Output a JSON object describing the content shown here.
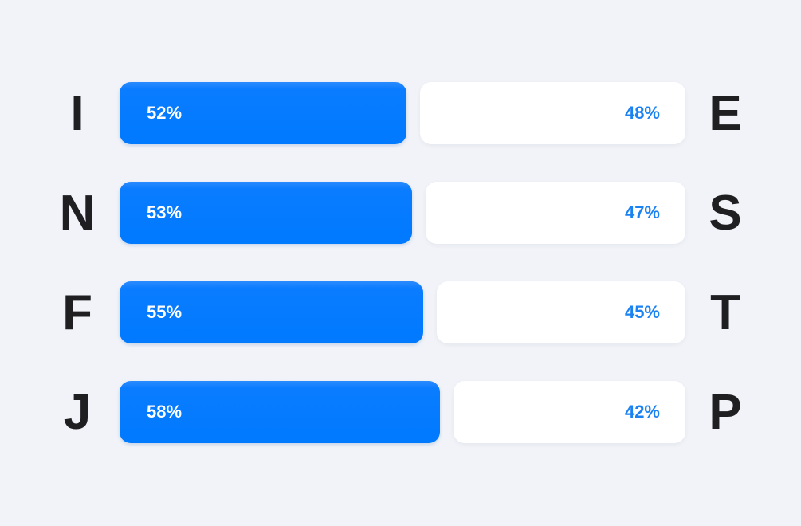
{
  "chart_data": {
    "type": "bar",
    "orientation": "horizontal",
    "stacked": true,
    "categories": [
      {
        "left": "I",
        "right": "E"
      },
      {
        "left": "N",
        "right": "S"
      },
      {
        "left": "F",
        "right": "T"
      },
      {
        "left": "J",
        "right": "P"
      }
    ],
    "series": [
      {
        "values": [
          52,
          53,
          55,
          58
        ],
        "labels": [
          "52%",
          "53%",
          "55%",
          "58%"
        ],
        "color": "#007aff"
      },
      {
        "values": [
          48,
          47,
          45,
          42
        ],
        "labels": [
          "48%",
          "47%",
          "45%",
          "42%"
        ],
        "color": "#ffffff"
      }
    ],
    "xlim": [
      0,
      100
    ],
    "grid": false,
    "legend": "none",
    "colors": {
      "background": "#f1f3f8",
      "primary": "#007aff",
      "secondary_text": "#1b82f2",
      "letters": "#1f1f21"
    }
  }
}
